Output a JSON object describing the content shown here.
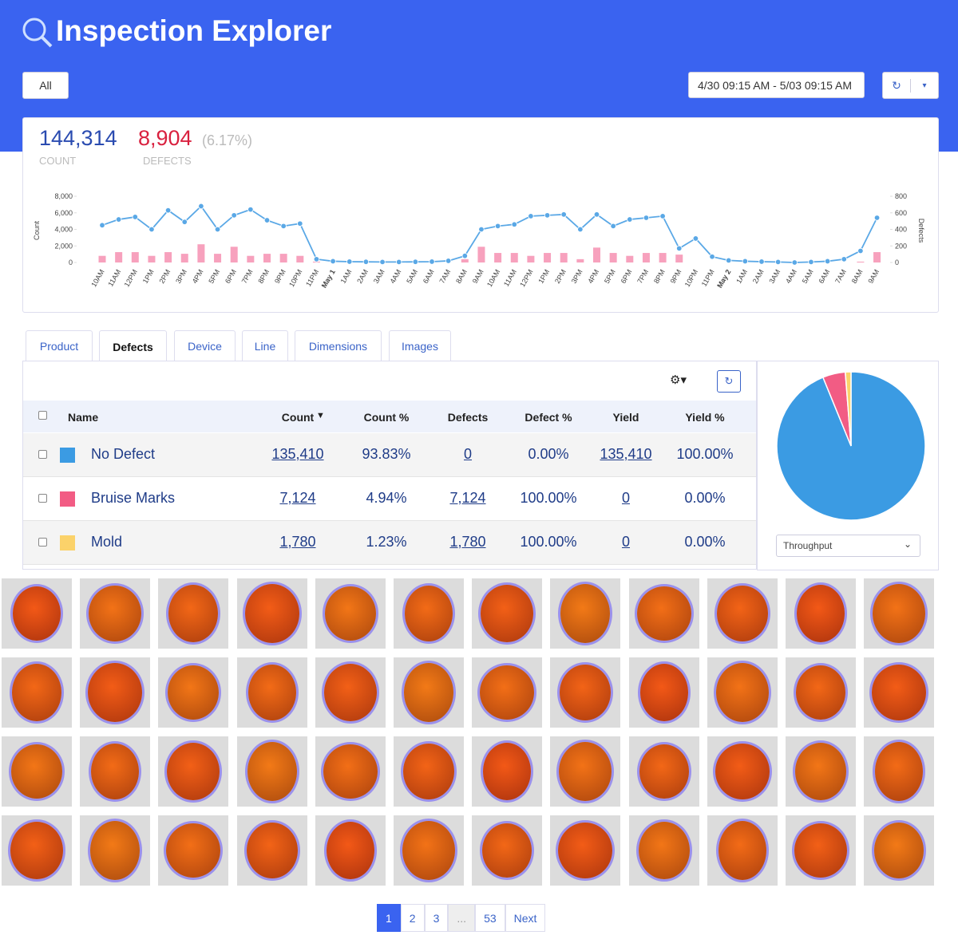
{
  "header": {
    "title": "Inspection Explorer",
    "filter_button": "All",
    "date_range": "4/30 09:15 AM - 5/03 09:15 AM"
  },
  "summary": {
    "count": "144,314",
    "count_label": "COUNT",
    "defects": "8,904",
    "defects_pct": "(6.17%)",
    "defects_label": "DEFECTS"
  },
  "timeline": {
    "type": "bar-line",
    "categories": [
      "10AM",
      "11AM",
      "12PM",
      "1PM",
      "2PM",
      "3PM",
      "4PM",
      "5PM",
      "6PM",
      "7PM",
      "8PM",
      "9PM",
      "10PM",
      "11PM",
      "May 1",
      "1AM",
      "2AM",
      "3AM",
      "4AM",
      "5AM",
      "6AM",
      "7AM",
      "8AM",
      "9AM",
      "10AM",
      "11AM",
      "12PM",
      "1PM",
      "2PM",
      "3PM",
      "4PM",
      "5PM",
      "6PM",
      "7PM",
      "8PM",
      "9PM",
      "10PM",
      "11PM",
      "May 2",
      "1AM",
      "2AM",
      "3AM",
      "4AM",
      "5AM",
      "6AM",
      "7AM",
      "8AM",
      "9AM"
    ],
    "series": [
      {
        "name": "Defects",
        "color": "#f7a1bd",
        "axis": "y2",
        "kind": "bar",
        "values": [
          80,
          125,
          125,
          80,
          125,
          105,
          220,
          105,
          190,
          80,
          105,
          105,
          80,
          10,
          0,
          0,
          0,
          0,
          0,
          0,
          0,
          0,
          40,
          190,
          115,
          115,
          80,
          115,
          115,
          40,
          180,
          115,
          80,
          115,
          115,
          95,
          0,
          0,
          0,
          0,
          0,
          0,
          0,
          0,
          0,
          0,
          10,
          125
        ]
      },
      {
        "name": "Count",
        "color": "#5aa8e6",
        "axis": "y",
        "kind": "line",
        "values": [
          4500,
          5200,
          5500,
          4000,
          6300,
          4900,
          6800,
          4000,
          5700,
          6400,
          5100,
          4400,
          4700,
          400,
          150,
          100,
          80,
          60,
          60,
          80,
          100,
          200,
          800,
          4000,
          4400,
          4600,
          5600,
          5700,
          5800,
          4000,
          5800,
          4400,
          5200,
          5400,
          5600,
          1700,
          2900,
          700,
          250,
          150,
          100,
          60,
          0,
          60,
          150,
          400,
          1400,
          5400
        ]
      }
    ],
    "ylabel": "Count",
    "y2label": "Defects",
    "ylim": [
      0,
      8000
    ],
    "yticks": [
      0,
      {
        "value": 2000,
        "label": "2,000"
      },
      {
        "value": 4000,
        "label": "4,000"
      },
      {
        "value": 6000,
        "label": "6,000"
      },
      {
        "value": 8000,
        "label": "8,000"
      }
    ],
    "y2lim": [
      0,
      800
    ],
    "y2ticks": [
      0,
      200,
      400,
      600,
      800
    ],
    "grid": false
  },
  "tabs": {
    "items": [
      "Product",
      "Defects",
      "Device",
      "Line",
      "Dimensions",
      "Images"
    ],
    "active": 1
  },
  "table": {
    "columns": [
      "Name",
      "Count",
      "Count %",
      "Defects",
      "Defect %",
      "Yield",
      "Yield %"
    ],
    "rows": [
      {
        "name": "No Defect",
        "color": "#3b9be3",
        "count": "135,410",
        "count_pct": "93.83%",
        "defects": "0",
        "defect_pct": "0.00%",
        "yield": "135,410",
        "yield_pct": "100.00%"
      },
      {
        "name": "Bruise Marks",
        "color": "#f25c84",
        "count": "7,124",
        "count_pct": "4.94%",
        "defects": "7,124",
        "defect_pct": "100.00%",
        "yield": "0",
        "yield_pct": "0.00%"
      },
      {
        "name": "Mold",
        "color": "#fbd26a",
        "count": "1,780",
        "count_pct": "1.23%",
        "defects": "1,780",
        "defect_pct": "100.00%",
        "yield": "0",
        "yield_pct": "0.00%"
      }
    ]
  },
  "pie": {
    "type": "pie",
    "values": [
      135410,
      7124,
      1780
    ],
    "colors": [
      "#3b9be3",
      "#f25c84",
      "#fbd26a"
    ],
    "metric": "Throughput"
  },
  "pagination": {
    "pages": [
      "1",
      "2",
      "3",
      "...",
      "53"
    ],
    "active": 0,
    "next": "Next"
  }
}
